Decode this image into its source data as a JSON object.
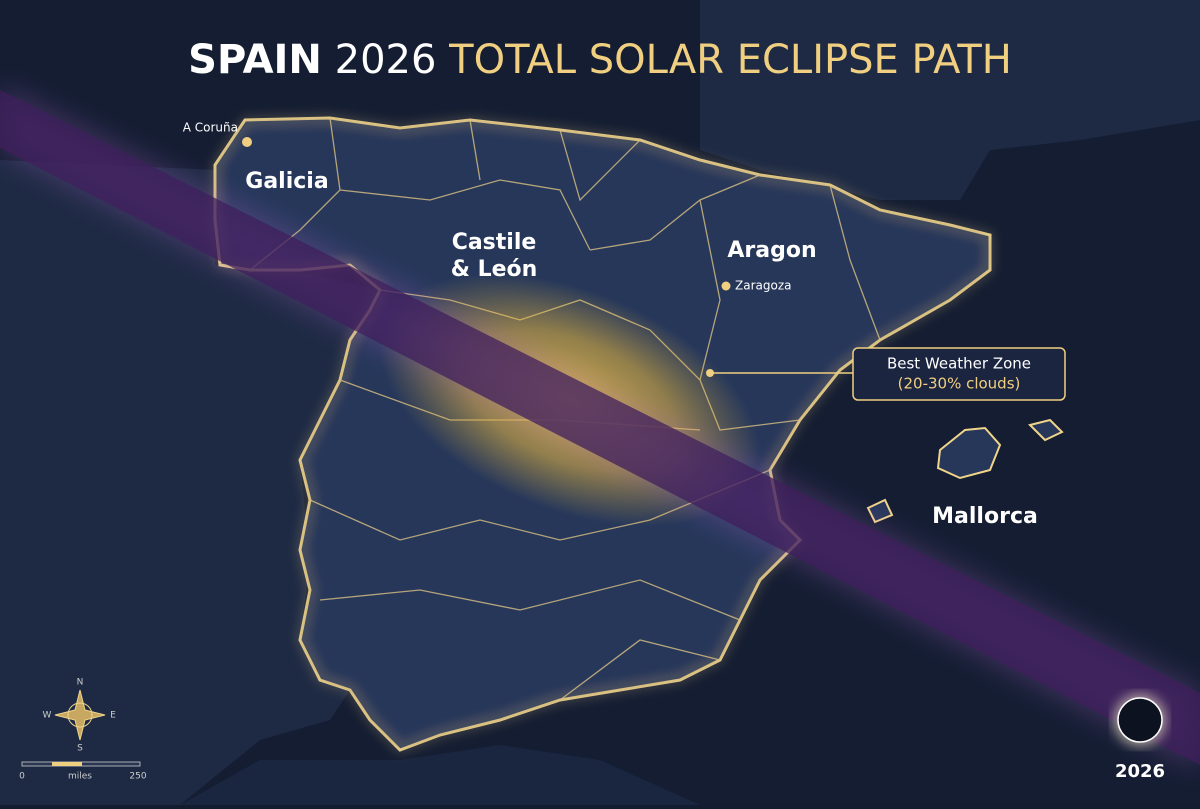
{
  "title": {
    "country": "SPAIN",
    "year": "2026",
    "subtitle": "TOTAL SOLAR ECLIPSE PATH"
  },
  "places": {
    "a_coruna": "A Coruña",
    "galicia": "Galicia",
    "castile_line1": "Castile",
    "castile_line2": "& León",
    "aragon": "Aragon",
    "zaragoza": "Zaragoza",
    "mallorca": "Mallorca"
  },
  "callout": {
    "title": "Best Weather Zone",
    "note": "(20-30% clouds)"
  },
  "compass": {
    "n": "N",
    "e": "E",
    "s": "S",
    "w": "W"
  },
  "scale": {
    "start": 0,
    "unit": "miles",
    "end": 250
  },
  "badge": "2026"
}
